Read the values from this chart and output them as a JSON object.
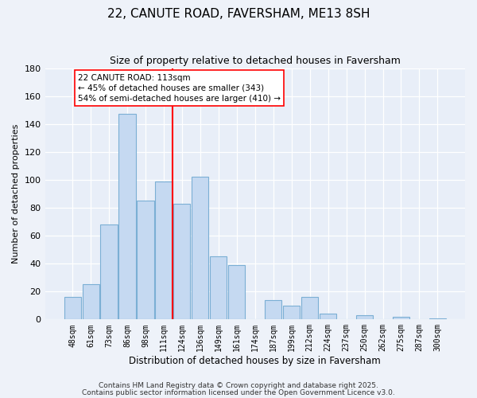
{
  "title": "22, CANUTE ROAD, FAVERSHAM, ME13 8SH",
  "subtitle": "Size of property relative to detached houses in Faversham",
  "xlabel": "Distribution of detached houses by size in Faversham",
  "ylabel": "Number of detached properties",
  "bar_labels": [
    "48sqm",
    "61sqm",
    "73sqm",
    "86sqm",
    "98sqm",
    "111sqm",
    "124sqm",
    "136sqm",
    "149sqm",
    "161sqm",
    "174sqm",
    "187sqm",
    "199sqm",
    "212sqm",
    "224sqm",
    "237sqm",
    "250sqm",
    "262sqm",
    "275sqm",
    "287sqm",
    "300sqm"
  ],
  "bar_heights": [
    16,
    25,
    68,
    147,
    85,
    99,
    83,
    102,
    45,
    39,
    0,
    14,
    10,
    16,
    4,
    0,
    3,
    0,
    2,
    0,
    1
  ],
  "bar_color": "#c5d9f1",
  "bar_edge_color": "#7bafd4",
  "vline_index": 5.5,
  "vline_color": "red",
  "annotation_title": "22 CANUTE ROAD: 113sqm",
  "annotation_line1": "← 45% of detached houses are smaller (343)",
  "annotation_line2": "54% of semi-detached houses are larger (410) →",
  "annotation_box_color": "white",
  "annotation_box_edge": "red",
  "ylim": [
    0,
    180
  ],
  "yticks": [
    0,
    20,
    40,
    60,
    80,
    100,
    120,
    140,
    160,
    180
  ],
  "footer1": "Contains HM Land Registry data © Crown copyright and database right 2025.",
  "footer2": "Contains public sector information licensed under the Open Government Licence v3.0.",
  "background_color": "#eef2f9",
  "plot_bg_color": "#e8eef8",
  "title_fontsize": 11,
  "subtitle_fontsize": 9,
  "ylabel_fontsize": 8,
  "xlabel_fontsize": 8.5,
  "tick_fontsize": 7,
  "footer_fontsize": 6.5
}
